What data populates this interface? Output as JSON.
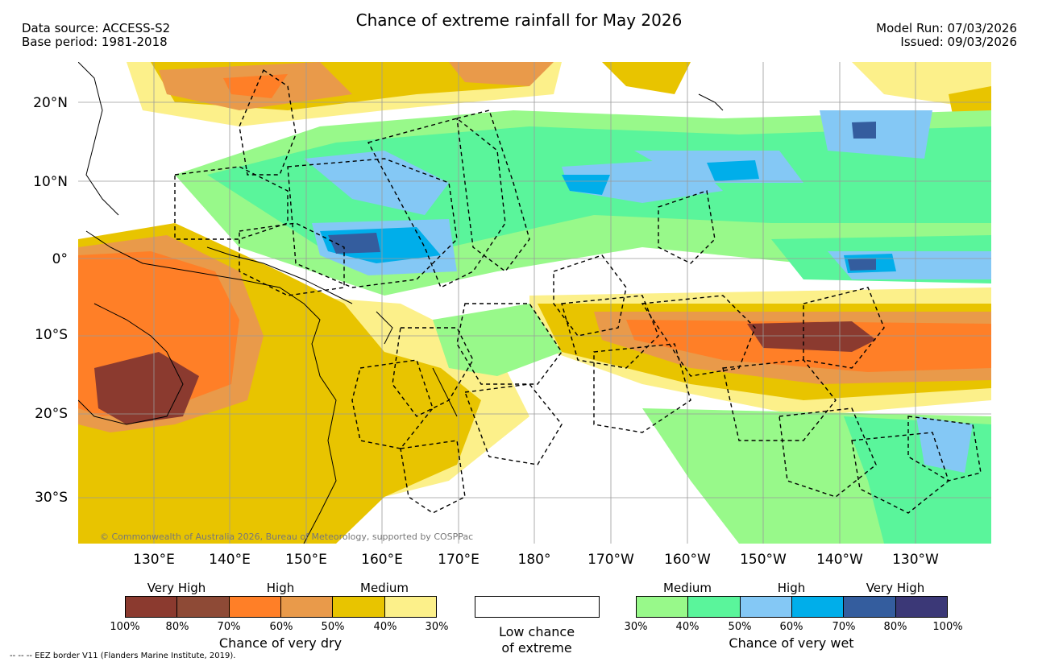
{
  "header": {
    "title": "Chance of extreme rainfall for May 2026",
    "data_source": "Data source: ACCESS-S2",
    "base_period": "Base period: 1981-2018",
    "model_run": "Model Run: 07/03/2026",
    "issued": "Issued: 09/03/2026"
  },
  "map": {
    "lat_labels": [
      "20°N",
      "10°N",
      "0°",
      "10°S",
      "20°S",
      "30°S"
    ],
    "lon_labels": [
      "130°E",
      "140°E",
      "150°E",
      "160°E",
      "170°E",
      "180°",
      "170°W",
      "160°W",
      "150°W",
      "140°W",
      "130°W"
    ],
    "copyright": "© Commonwealth of Australia 2026, Bureau of Meteorology, supported by COSPPac"
  },
  "legend": {
    "dry": {
      "categories": [
        "Very High",
        "High",
        "Medium"
      ],
      "ticks": [
        "100%",
        "80%",
        "70%",
        "60%",
        "50%",
        "40%",
        "30%"
      ],
      "colors": [
        "#8b3a2f",
        "#8e4a36",
        "#ff7f27",
        "#e99a4a",
        "#e8c400",
        "#fcf08a"
      ],
      "caption": "Chance of very dry"
    },
    "low": {
      "caption_line1": "Low chance",
      "caption_line2": "of extreme"
    },
    "wet": {
      "categories": [
        "Medium",
        "High",
        "Very High"
      ],
      "ticks": [
        "30%",
        "40%",
        "50%",
        "60%",
        "70%",
        "80%",
        "100%"
      ],
      "colors": [
        "#98f98a",
        "#5af59b",
        "#84c8f5",
        "#00aeea",
        "#345d9e",
        "#3b3877"
      ],
      "caption": "Chance of very wet"
    }
  },
  "footnote": "-- -- -- EEZ border V11 (Flanders Marine Institute, 2019)."
}
